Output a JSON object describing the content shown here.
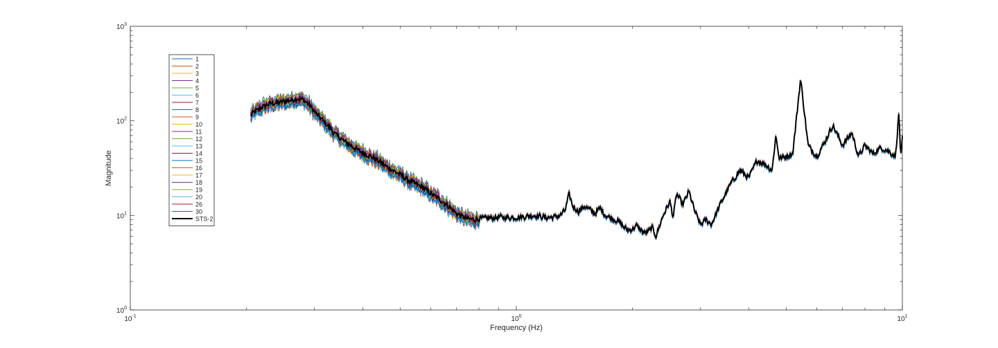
{
  "chart_data": {
    "type": "line",
    "title": "",
    "xlabel": "Frequency (Hz)",
    "ylabel": "Magnitude",
    "xscale": "log",
    "yscale": "log",
    "xlim": [
      0.1,
      10
    ],
    "ylim": [
      1,
      1000
    ],
    "grid": false,
    "legend_position": "top-left",
    "x_ticks": [
      {
        "base": "10",
        "exp": "-1",
        "value": 0.1
      },
      {
        "base": "10",
        "exp": "0",
        "value": 1
      },
      {
        "base": "10",
        "exp": "1",
        "value": 10
      }
    ],
    "y_ticks": [
      {
        "base": "10",
        "exp": "0",
        "value": 1
      },
      {
        "base": "10",
        "exp": "1",
        "value": 10
      },
      {
        "base": "10",
        "exp": "2",
        "value": 100
      },
      {
        "base": "10",
        "exp": "3",
        "value": 1000
      }
    ],
    "x": [
      0.205,
      0.21,
      0.22,
      0.23,
      0.24,
      0.25,
      0.26,
      0.27,
      0.28,
      0.29,
      0.3,
      0.32,
      0.34,
      0.36,
      0.38,
      0.4,
      0.43,
      0.46,
      0.5,
      0.53,
      0.57,
      0.6,
      0.63,
      0.66,
      0.7,
      0.72,
      0.75,
      0.78,
      0.82,
      0.86,
      0.9,
      0.95,
      1.0,
      1.05,
      1.1,
      1.15,
      1.2,
      1.25,
      1.3,
      1.34,
      1.37,
      1.4,
      1.45,
      1.5,
      1.55,
      1.6,
      1.65,
      1.7,
      1.75,
      1.8,
      1.85,
      1.9,
      1.95,
      2.0,
      2.05,
      2.1,
      2.15,
      2.2,
      2.25,
      2.3,
      2.4,
      2.5,
      2.55,
      2.6,
      2.7,
      2.8,
      2.9,
      3.0,
      3.1,
      3.2,
      3.4,
      3.6,
      3.8,
      4.0,
      4.2,
      4.4,
      4.6,
      4.7,
      4.8,
      5.0,
      5.2,
      5.45,
      5.7,
      6.0,
      6.3,
      6.6,
      7.0,
      7.4,
      7.7,
      8.0,
      8.4,
      8.8,
      9.2,
      9.6,
      9.8,
      9.9,
      10.0
    ],
    "series": [
      {
        "name": "1",
        "color": "#0072bd"
      },
      {
        "name": "2",
        "color": "#d95319"
      },
      {
        "name": "3",
        "color": "#edb120"
      },
      {
        "name": "4",
        "color": "#7e2f8e"
      },
      {
        "name": "5",
        "color": "#77ac30"
      },
      {
        "name": "6",
        "color": "#4dbeee"
      },
      {
        "name": "7",
        "color": "#a2142f"
      },
      {
        "name": "8",
        "color": "#0072bd"
      },
      {
        "name": "9",
        "color": "#d95319"
      },
      {
        "name": "10",
        "color": "#edb120"
      },
      {
        "name": "11",
        "color": "#7e2f8e"
      },
      {
        "name": "12",
        "color": "#77ac30"
      },
      {
        "name": "13",
        "color": "#4dbeee"
      },
      {
        "name": "14",
        "color": "#a2142f"
      },
      {
        "name": "15",
        "color": "#0072bd"
      },
      {
        "name": "16",
        "color": "#d95319"
      },
      {
        "name": "17",
        "color": "#edb120"
      },
      {
        "name": "18",
        "color": "#7e2f8e"
      },
      {
        "name": "19",
        "color": "#77ac30"
      },
      {
        "name": "20",
        "color": "#4dbeee"
      },
      {
        "name": "26",
        "color": "#a2142f"
      },
      {
        "name": "30",
        "color": "#0072bd"
      },
      {
        "name": "STS-2",
        "color": "#000000",
        "reference": true,
        "values": [
          115,
          125,
          140,
          152,
          155,
          160,
          165,
          172,
          168,
          150,
          125,
          95,
          72,
          60,
          52,
          46,
          40,
          33,
          27,
          23,
          20,
          17,
          15,
          13,
          10.5,
          9.8,
          9.2,
          9.0,
          9.3,
          9.4,
          9.6,
          9.5,
          9.5,
          9.7,
          10.0,
          9.8,
          9.5,
          9.6,
          10.0,
          11.5,
          17.0,
          12.5,
          11.0,
          12.5,
          11.5,
          10.5,
          12.0,
          10.0,
          9.5,
          9.0,
          8.5,
          7.5,
          7.0,
          7.2,
          7.8,
          7.0,
          6.5,
          6.8,
          7.5,
          6.0,
          10.0,
          14.0,
          9.5,
          17.0,
          13.0,
          18.0,
          11.0,
          8.0,
          9.0,
          8.0,
          14.0,
          22.0,
          30.0,
          25.0,
          38.0,
          35.0,
          30.0,
          70.0,
          40.0,
          42.0,
          45.0,
          280.0,
          55.0,
          42.0,
          60.0,
          90.0,
          55.0,
          75.0,
          42.0,
          55.0,
          45.0,
          52.0,
          48.0,
          42.0,
          125.0,
          40.0,
          65.0
        ]
      }
    ]
  }
}
